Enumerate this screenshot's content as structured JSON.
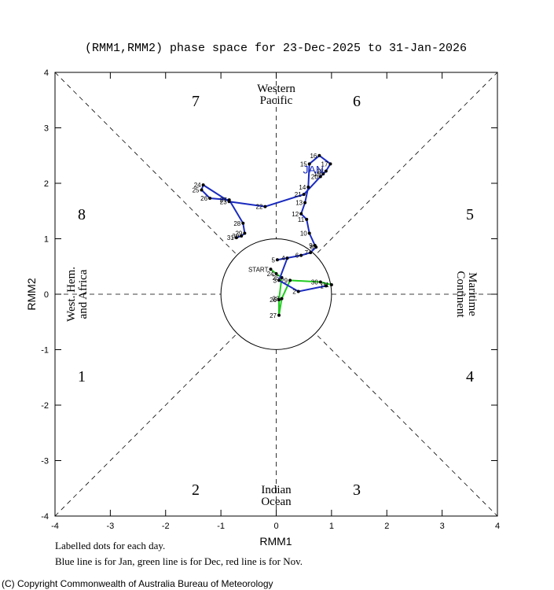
{
  "chart_data": {
    "type": "line",
    "title": "(RMM1,RMM2) phase space for 23-Dec-2025 to 31-Jan-2026",
    "x_label": "RMM1",
    "y_label": "RMM2",
    "xlim": [
      -4,
      4
    ],
    "ylim": [
      -4,
      4
    ],
    "xticks": [
      -4,
      -3,
      -2,
      -1,
      0,
      1,
      2,
      3,
      4
    ],
    "yticks": [
      -4,
      -3,
      -2,
      -1,
      0,
      1,
      2,
      3,
      4
    ],
    "phase_labels": [
      "1",
      "2",
      "3",
      "4",
      "5",
      "6",
      "7",
      "8"
    ],
    "regions": {
      "top": [
        "Western",
        "Pacific"
      ],
      "bottom": [
        "Indian",
        "Ocean"
      ],
      "left": [
        "West. Hem.",
        "and Africa"
      ],
      "right": [
        "Maritime",
        "Continent"
      ]
    },
    "series": [
      {
        "color": "#22cc22",
        "x": [
          -0.1,
          0.0,
          0.1,
          0.05,
          0.05,
          0.1,
          0.25,
          0.8,
          1.0
        ],
        "y": [
          0.45,
          0.37,
          0.3,
          -0.1,
          -0.38,
          -0.08,
          0.25,
          0.22,
          0.17
        ],
        "point_labels": [
          "START",
          "24",
          "25",
          "26",
          "27",
          "28",
          "29",
          "30",
          "31"
        ]
      },
      {
        "name": "JAN",
        "color": "#1a2bbf",
        "x": [
          0.9,
          0.4,
          0.05,
          0.2,
          0.02,
          0.45,
          0.62,
          0.72,
          0.7,
          0.6,
          0.55,
          0.45,
          0.52,
          0.58,
          0.6,
          0.78,
          0.98,
          0.9,
          0.85,
          0.8,
          0.5,
          -0.2,
          -0.85,
          -1.32,
          -1.35,
          -1.2,
          -0.85,
          -0.6,
          -0.57,
          -0.63,
          -0.72
        ],
        "y": [
          0.15,
          0.05,
          0.25,
          0.65,
          0.62,
          0.7,
          0.75,
          0.85,
          0.88,
          1.1,
          1.35,
          1.45,
          1.65,
          1.93,
          2.35,
          2.5,
          2.35,
          2.22,
          2.17,
          2.12,
          1.8,
          1.58,
          1.67,
          1.97,
          1.88,
          1.73,
          1.7,
          1.28,
          1.1,
          1.05,
          1.02
        ],
        "point_labels": [
          "1",
          "2",
          "3",
          "4",
          "5",
          "6",
          "7",
          "8",
          "9",
          "10",
          "11",
          "12",
          "13",
          "14",
          "15",
          "16",
          "17",
          "18",
          "19",
          "20",
          "21",
          "22",
          "23",
          "24",
          "25",
          "26",
          "27",
          "28",
          "29",
          "30",
          "31"
        ]
      }
    ],
    "notes": [
      "Labelled dots for each day.",
      "Blue line is for Jan, green line is for Dec, red line is for Nov."
    ],
    "copyright": "(C) Copyright Commonwealth of Australia Bureau of Meteorology"
  }
}
